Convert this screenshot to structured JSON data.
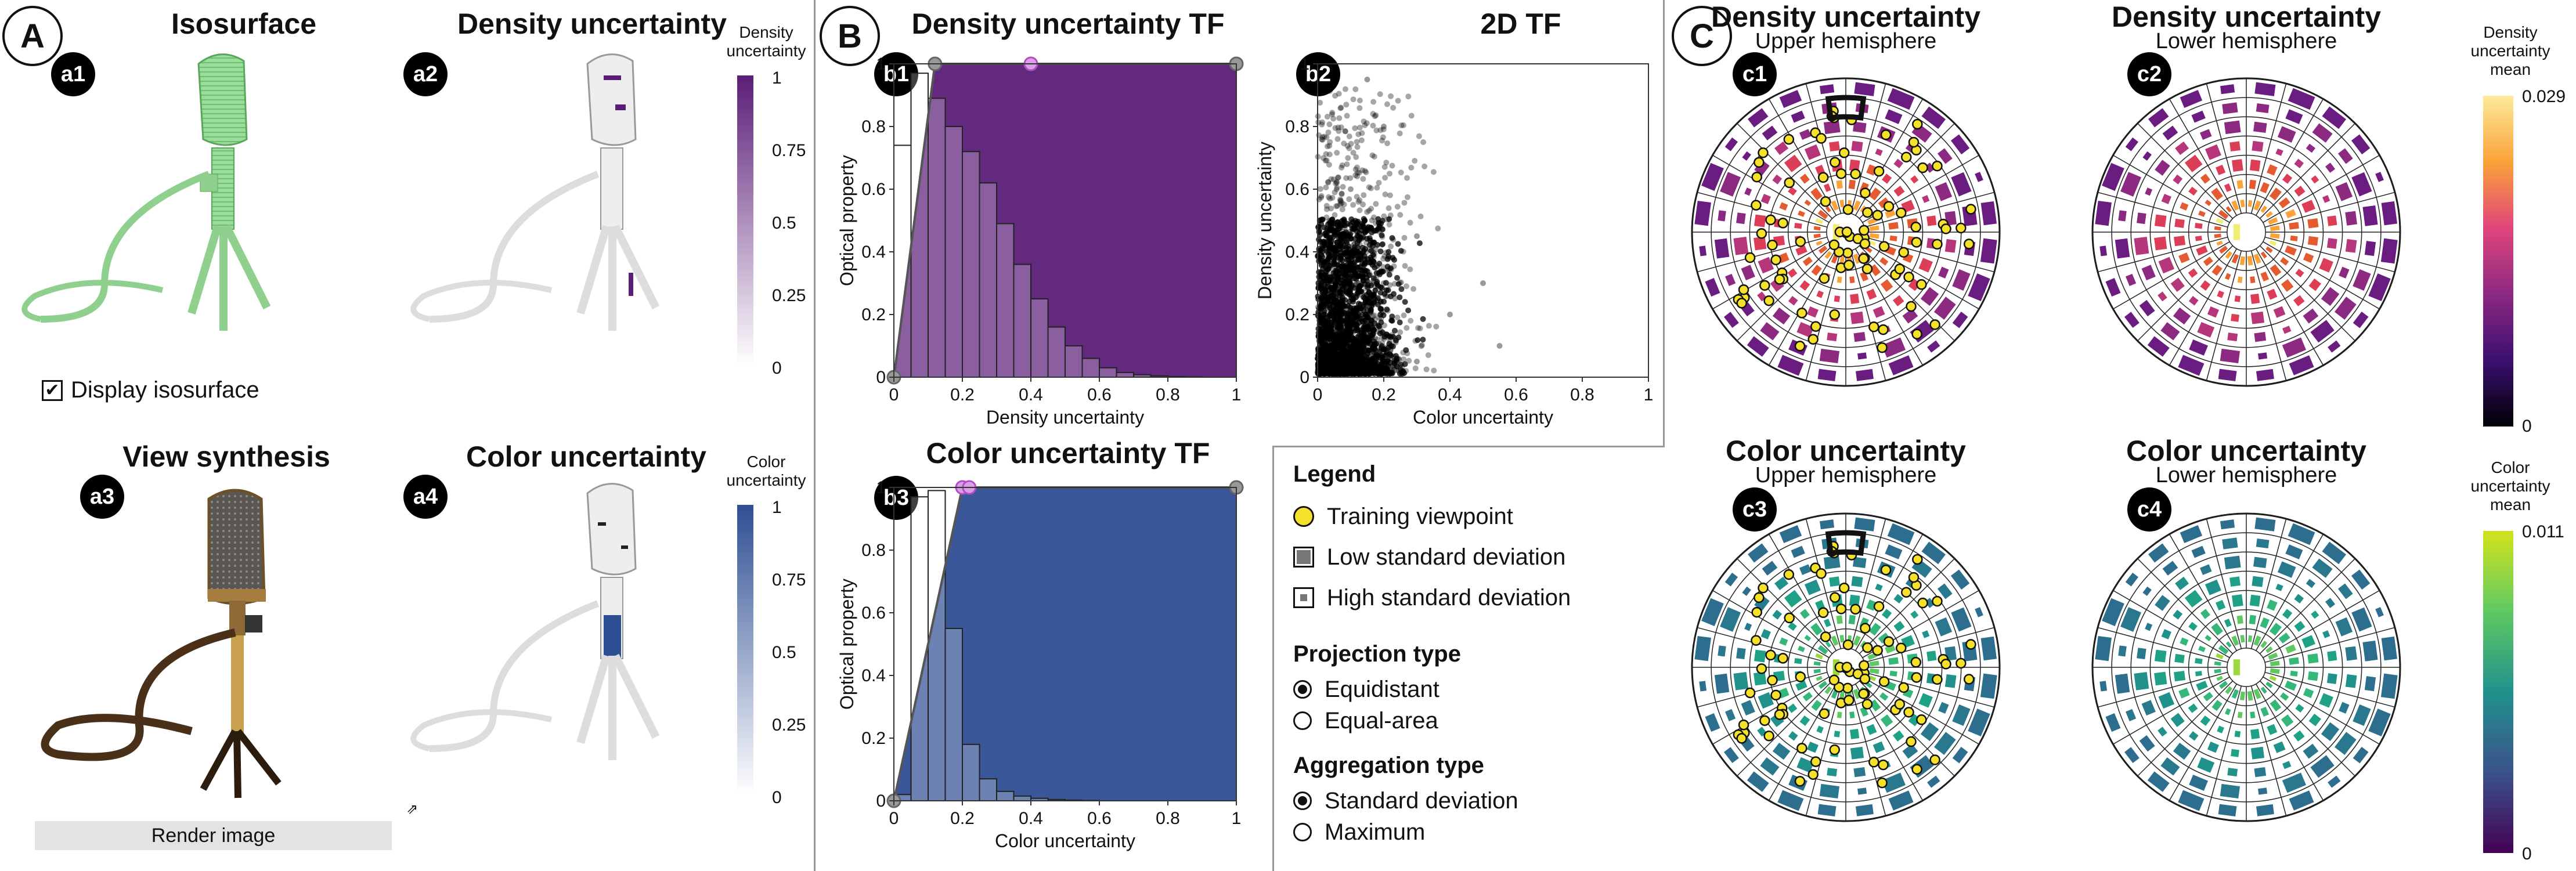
{
  "section_a": {
    "label": "A",
    "panels": [
      {
        "badge": "a1",
        "title": "Isosurface"
      },
      {
        "badge": "a2",
        "title": "Density uncertainty"
      },
      {
        "badge": "a3",
        "title": "View synthesis"
      },
      {
        "badge": "a4",
        "title": "Color uncertainty"
      }
    ],
    "checkbox_label": "Display isosurface",
    "checkbox_checked": true,
    "render_button": "Render image",
    "density_colorbar": {
      "title": "Density uncertainty",
      "ticks": [
        "1",
        "0.75",
        "0.5",
        "0.25",
        "0"
      ],
      "color": "#5b1e78"
    },
    "color_colorbar": {
      "title": "Color uncertainty",
      "ticks": [
        "1",
        "0.75",
        "0.5",
        "0.25",
        "0"
      ],
      "color": "#2f4f93"
    }
  },
  "section_b": {
    "label": "B",
    "legend": {
      "title": "Legend",
      "items": [
        "Training viewpoint",
        "Low standard deviation",
        "High standard deviation"
      ],
      "projection_title": "Projection type",
      "projection_options": [
        "Equidistant",
        "Equal-area"
      ],
      "projection_selected": 0,
      "aggregation_title": "Aggregation type",
      "aggregation_options": [
        "Standard deviation",
        "Maximum"
      ],
      "aggregation_selected": 0
    }
  },
  "section_c": {
    "label": "C",
    "panels": [
      {
        "badge": "c1",
        "title": "Density uncertainty",
        "subtitle": "Upper hemisphere"
      },
      {
        "badge": "c2",
        "title": "Density uncertainty",
        "subtitle": "Lower hemisphere"
      },
      {
        "badge": "c3",
        "title": "Color uncertainty",
        "subtitle": "Upper hemisphere"
      },
      {
        "badge": "c4",
        "title": "Color uncertainty",
        "subtitle": "Lower hemisphere"
      }
    ],
    "density_colorbar": {
      "title": "Density uncertainty mean",
      "max": "0.029",
      "min": "0"
    },
    "color_colorbar": {
      "title": "Color uncertainty mean",
      "max": "0.011",
      "min": "0"
    }
  },
  "chart_data": [
    {
      "type": "bar",
      "badge": "b1",
      "title": "Density uncertainty TF",
      "xlabel": "Density uncertainty",
      "ylabel": "Optical property",
      "xlim": [
        0,
        1
      ],
      "ylim": [
        0,
        1
      ],
      "xticks": [
        "0",
        "0.2",
        "0.4",
        "0.6",
        "0.8",
        "1"
      ],
      "yticks": [
        "0",
        "0.2",
        "0.4",
        "0.6",
        "0.8",
        "1"
      ],
      "bin_width": 0.05,
      "histogram": [
        0.74,
        0.97,
        0.89,
        0.8,
        0.72,
        0.62,
        0.49,
        0.36,
        0.25,
        0.16,
        0.1,
        0.06,
        0.03,
        0.015,
        0.008,
        0.004,
        0.002,
        0.001,
        0,
        0
      ],
      "tf_points": [
        [
          0,
          0
        ],
        [
          0.12,
          1
        ],
        [
          0.4,
          1
        ],
        [
          1,
          1
        ]
      ],
      "fill_color": "#5b1e78"
    },
    {
      "type": "scatter",
      "badge": "b2",
      "title": "2D TF",
      "xlabel": "Color uncertainty",
      "ylabel": "Density uncertainty",
      "xlim": [
        0,
        1
      ],
      "ylim": [
        0,
        1
      ],
      "xticks": [
        "0",
        "0.2",
        "0.4",
        "0.6",
        "0.8",
        "1"
      ],
      "yticks": [
        "0",
        "0.2",
        "0.4",
        "0.6",
        "0.8",
        "1"
      ],
      "description_points": [
        [
          0.05,
          0.02
        ],
        [
          0.1,
          0.1
        ],
        [
          0.15,
          0.2
        ],
        [
          0.2,
          0.3
        ],
        [
          0.3,
          0.45
        ],
        [
          0.1,
          0.6
        ],
        [
          0.2,
          0.8
        ],
        [
          0.15,
          0.95
        ],
        [
          0.5,
          0.3
        ],
        [
          0.55,
          0.1
        ],
        [
          0.4,
          0.2
        ],
        [
          0.3,
          0.05
        ]
      ]
    },
    {
      "type": "bar",
      "badge": "b3",
      "title": "Color uncertainty TF",
      "xlabel": "Color uncertainty",
      "ylabel": "Optical property",
      "xlim": [
        0,
        1
      ],
      "ylim": [
        0,
        1
      ],
      "xticks": [
        "0",
        "0.2",
        "0.4",
        "0.6",
        "0.8",
        "1"
      ],
      "yticks": [
        "0",
        "0.2",
        "0.4",
        "0.6",
        "0.8",
        "1"
      ],
      "bin_width": 0.05,
      "histogram": [
        0.02,
        0.97,
        0.99,
        0.55,
        0.18,
        0.07,
        0.03,
        0.015,
        0.008,
        0.004,
        0.002,
        0.001,
        0,
        0,
        0,
        0,
        0,
        0,
        0,
        0
      ],
      "tf_points": [
        [
          0,
          0
        ],
        [
          0.2,
          1
        ],
        [
          0.22,
          1
        ],
        [
          1,
          1
        ]
      ],
      "fill_color": "#2f4f93"
    }
  ]
}
